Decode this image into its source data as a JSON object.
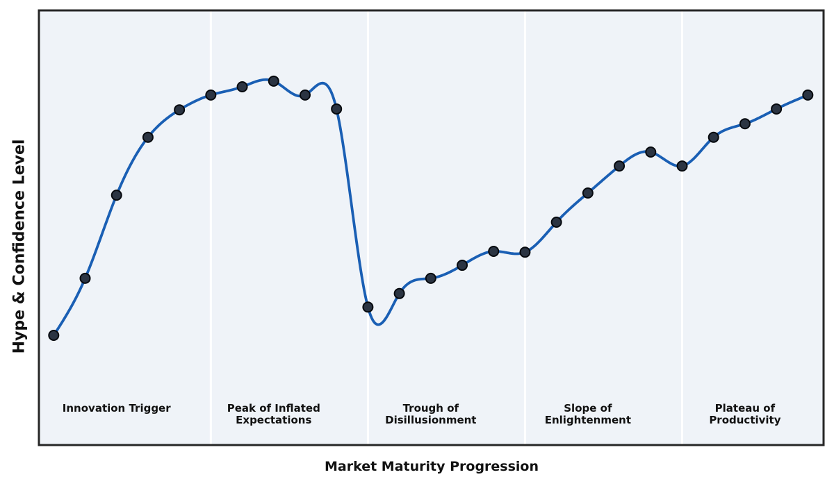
{
  "chart_data": {
    "type": "line",
    "title": "",
    "xlabel": "Market Maturity Progression",
    "ylabel": "Hype & Confidence Level",
    "x": [
      0,
      1,
      2,
      3,
      4,
      5,
      6,
      7,
      8,
      9,
      10,
      11,
      12,
      13,
      14,
      15,
      16,
      17,
      18,
      19,
      20,
      21,
      22,
      23,
      24
    ],
    "hype_values": [
      25.2,
      38.3,
      57.4,
      70.7,
      77.0,
      80.4,
      82.3,
      83.6,
      80.4,
      77.2,
      31.7,
      34.8,
      38.3,
      41.3,
      44.5,
      44.3,
      51.2,
      57.9,
      64.1,
      67.3,
      64.1,
      70.7,
      73.8,
      77.2,
      80.4
    ],
    "xlim": [
      -0.45,
      24.55
    ],
    "ylim": [
      0,
      100
    ],
    "grid": false,
    "legend": null,
    "ticks": "none",
    "curve_style": "smooth-cubic-spline-through-points",
    "phase_dividers_x": [
      5,
      10,
      15,
      20
    ],
    "phases": [
      {
        "label": "Innovation Trigger",
        "anchor_x": 2
      },
      {
        "label": "Peak of Inflated\nExpectations",
        "anchor_x": 7
      },
      {
        "label": "Trough of\nDisillusionment",
        "anchor_x": 12
      },
      {
        "label": "Slope of\nEnlightenment",
        "anchor_x": 17
      },
      {
        "label": "Plateau of\nProductivity",
        "anchor_x": 22
      }
    ],
    "colors": {
      "line": "#1a5fb4",
      "marker_fill": "#2b3442",
      "marker_edge": "#06090e",
      "plot_background": "#eff3f8",
      "phase_divider": "#ffffff",
      "frame": "#262626",
      "text": "#111111",
      "figure_background": "#ffffff"
    }
  }
}
